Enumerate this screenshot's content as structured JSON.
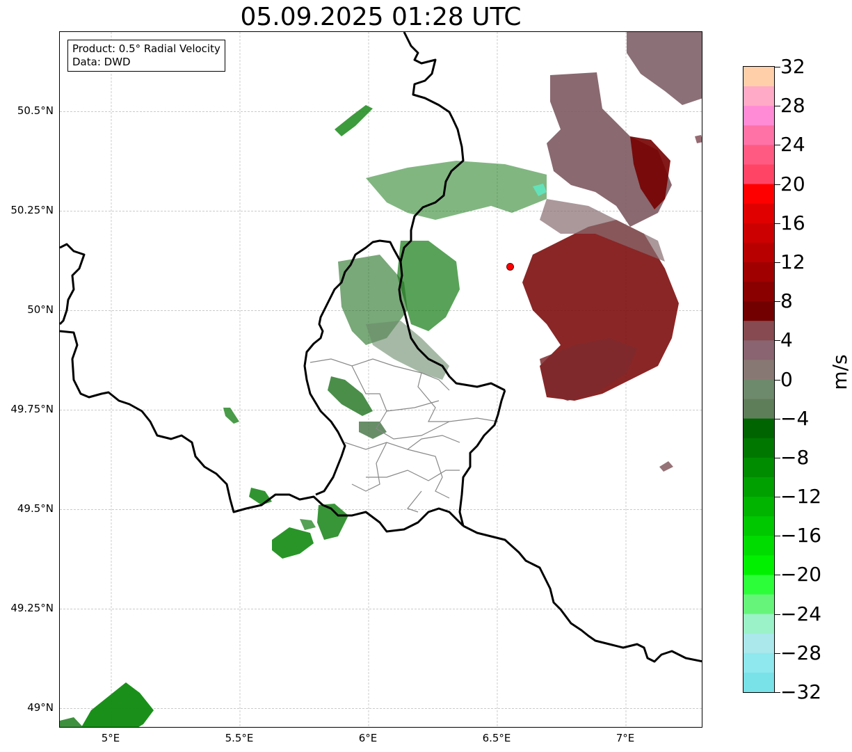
{
  "title": "05.09.2025 01:28 UTC",
  "info": {
    "product": "Product: 0.5° Radial Velocity",
    "source": "Data: DWD"
  },
  "map": {
    "extent": {
      "lon_min": 4.8,
      "lon_max": 7.3,
      "lat_min": 48.95,
      "lat_max": 50.7
    },
    "radar_site": {
      "lon": 6.55,
      "lat": 50.11,
      "color": "#ff0000"
    },
    "lat_ticks": [
      {
        "value": 50.5,
        "label": "50.5°N"
      },
      {
        "value": 50.25,
        "label": "50.25°N"
      },
      {
        "value": 50.0,
        "label": "50°N"
      },
      {
        "value": 49.75,
        "label": "49.75°N"
      },
      {
        "value": 49.5,
        "label": "49.5°N"
      },
      {
        "value": 49.25,
        "label": "49.25°N"
      },
      {
        "value": 49.0,
        "label": "49°N"
      }
    ],
    "lon_ticks": [
      {
        "value": 5.0,
        "label": "5°E"
      },
      {
        "value": 5.5,
        "label": "5.5°E"
      },
      {
        "value": 6.0,
        "label": "6°E"
      },
      {
        "value": 6.5,
        "label": "6.5°E"
      },
      {
        "value": 7.0,
        "label": "7°E"
      }
    ],
    "grid": true
  },
  "colorbar": {
    "unit": "m/s",
    "min": -32,
    "max": 32,
    "tick_labels": [
      "32",
      "28",
      "24",
      "20",
      "16",
      "12",
      "8",
      "4",
      "0",
      "−4",
      "−8",
      "−12",
      "−16",
      "−20",
      "−24",
      "−28",
      "−32"
    ],
    "tick_values": [
      32,
      28,
      24,
      20,
      16,
      12,
      8,
      4,
      0,
      -4,
      -8,
      -12,
      -16,
      -20,
      -24,
      -28,
      -32
    ],
    "colors_top_to_bottom": [
      "#ffcfaa",
      "#ffaac6",
      "#ff8ad6",
      "#ff72a6",
      "#ff5a82",
      "#ff4466",
      "#ff0000",
      "#e00000",
      "#cc0000",
      "#b80000",
      "#a00000",
      "#8a0000",
      "#720000",
      "#864a50",
      "#8a6470",
      "#887874",
      "#6e8a6c",
      "#5e7e5a",
      "#006400",
      "#007800",
      "#008c00",
      "#00a000",
      "#00b400",
      "#00c800",
      "#00dc00",
      "#00f000",
      "#2cff3a",
      "#66f57a",
      "#9cf2c8",
      "#aae8ec",
      "#8ee8ee",
      "#78e2e8"
    ]
  }
}
